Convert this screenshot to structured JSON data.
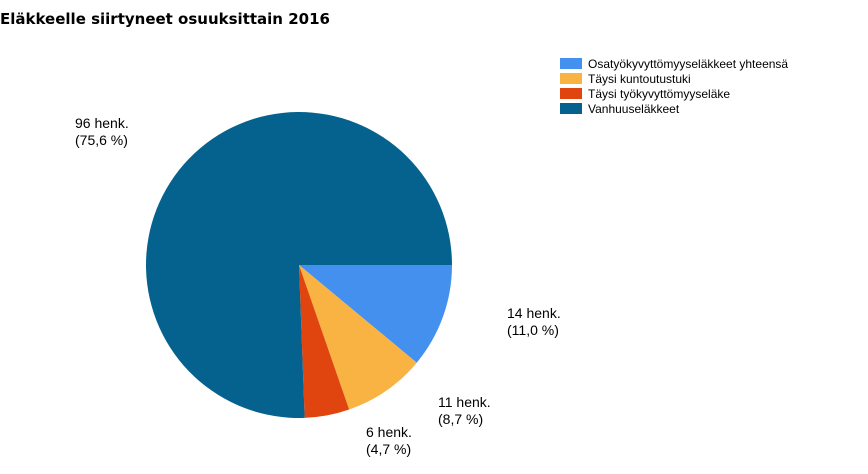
{
  "chart_data": {
    "type": "pie",
    "title": "Eläkkeelle siirtyneet osuuksittain 2016",
    "categories": [
      "Osatyökyvyttömyyseläkkeet yhteensä",
      "Täysi kuntoutustuki",
      "Täysi työkyvyttömyyseläke",
      "Vanhuuseläkkeet"
    ],
    "values": [
      14,
      11,
      6,
      96
    ],
    "value_labels": [
      "14 henk.",
      "11 henk.",
      "6 henk.",
      "96 henk."
    ],
    "percent_labels": [
      "(11,0 %)",
      "(8,7 %)",
      "(4,7 %)",
      "(75,6 %)"
    ],
    "colors": [
      "#4490ee",
      "#f8b342",
      "#e1450f",
      "#05628e"
    ],
    "legend": "top-right"
  }
}
